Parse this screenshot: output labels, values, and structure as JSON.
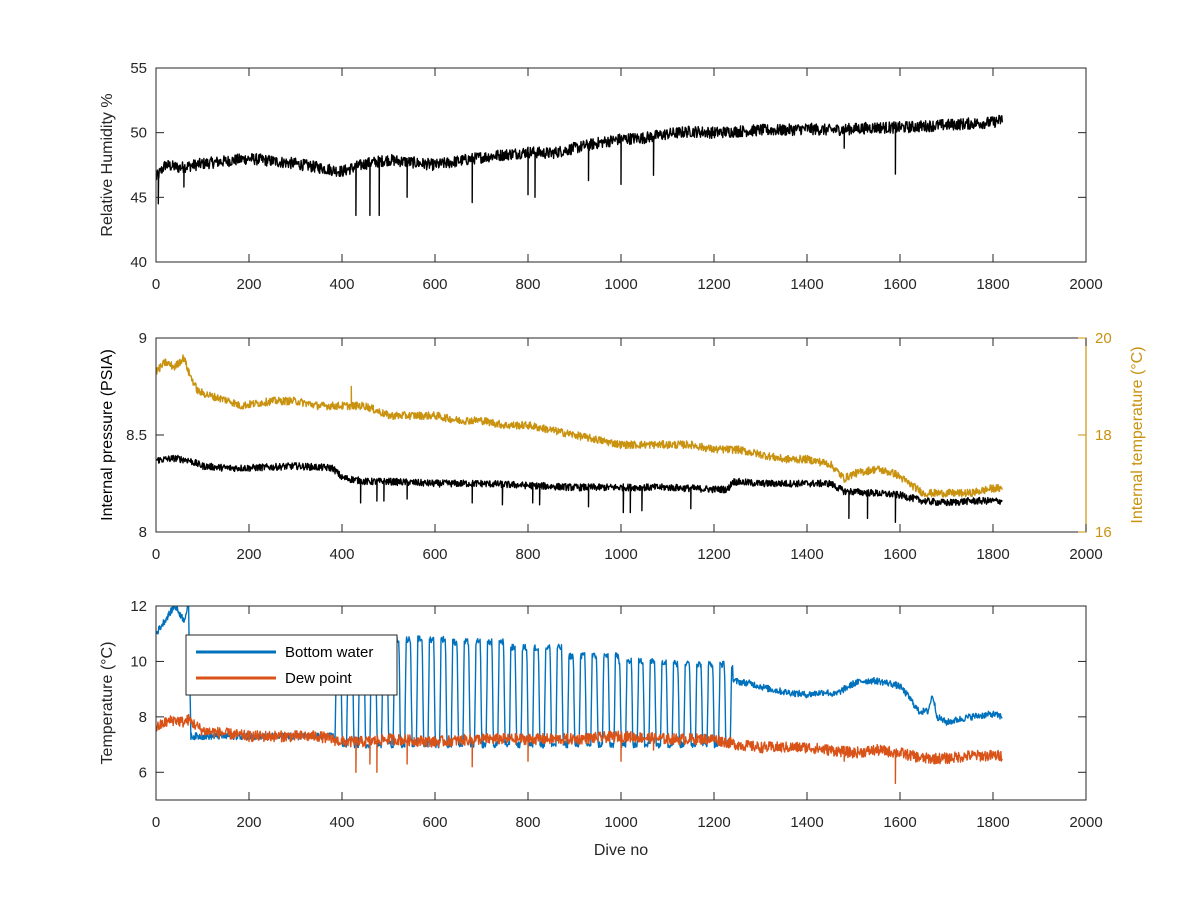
{
  "chart_data": [
    {
      "type": "line",
      "xlabel": "",
      "ylabel": "Relative Humidity %",
      "xlim": [
        0,
        2000
      ],
      "ylim": [
        40,
        55
      ],
      "xticks": [
        "0",
        "200",
        "400",
        "600",
        "800",
        "1000",
        "1200",
        "1400",
        "1600",
        "1800",
        "2000"
      ],
      "yticks": [
        "40",
        "45",
        "50",
        "55"
      ],
      "series": [
        {
          "color": "#000000",
          "x": [
            0,
            20,
            50,
            100,
            150,
            200,
            250,
            300,
            350,
            400,
            450,
            500,
            550,
            600,
            650,
            700,
            750,
            800,
            850,
            900,
            950,
            1000,
            1050,
            1100,
            1150,
            1200,
            1250,
            1300,
            1350,
            1400,
            1450,
            1500,
            1550,
            1600,
            1650,
            1700,
            1750,
            1800,
            1820
          ],
          "y": [
            46.5,
            47.5,
            47.3,
            47.6,
            47.8,
            48.0,
            47.8,
            47.6,
            47.3,
            47.0,
            47.6,
            47.9,
            47.7,
            47.5,
            47.8,
            48.1,
            48.3,
            48.5,
            48.4,
            48.8,
            49.2,
            49.5,
            49.6,
            49.9,
            50.1,
            50.0,
            50.1,
            50.2,
            50.2,
            50.3,
            50.2,
            50.3,
            50.4,
            50.4,
            50.5,
            50.6,
            50.7,
            50.8,
            51.0
          ],
          "noise": 0.45,
          "spikes": [
            [
              5,
              44.5
            ],
            [
              60,
              45.8
            ],
            [
              430,
              43.6
            ],
            [
              460,
              43.6
            ],
            [
              480,
              43.6
            ],
            [
              540,
              45.0
            ],
            [
              680,
              44.6
            ],
            [
              800,
              45.2
            ],
            [
              815,
              45.0
            ],
            [
              930,
              46.3
            ],
            [
              1000,
              46.0
            ],
            [
              1070,
              46.7
            ],
            [
              1480,
              48.8
            ],
            [
              1590,
              46.8
            ]
          ]
        }
      ]
    },
    {
      "type": "line",
      "xlabel": "",
      "ylabel": "Internal pressure (PSIA)",
      "ylabel_right": "Internal temperature (°C)",
      "xlim": [
        0,
        2000
      ],
      "ylim": [
        8,
        9
      ],
      "ylim_right": [
        16,
        20
      ],
      "xticks": [
        "0",
        "200",
        "400",
        "600",
        "800",
        "1000",
        "1200",
        "1400",
        "1600",
        "1800",
        "2000"
      ],
      "yticks": [
        "8",
        "8.5",
        "9"
      ],
      "yticks_right": [
        "16",
        "18",
        "20"
      ],
      "series": [
        {
          "axis": "left",
          "color": "#000000",
          "x": [
            0,
            40,
            70,
            100,
            150,
            180,
            200,
            300,
            380,
            400,
            450,
            500,
            600,
            700,
            800,
            900,
            1000,
            1100,
            1200,
            1230,
            1240,
            1300,
            1400,
            1450,
            1480,
            1550,
            1600,
            1650,
            1700,
            1750,
            1800,
            1820
          ],
          "y": [
            8.37,
            8.38,
            8.37,
            8.34,
            8.33,
            8.33,
            8.33,
            8.34,
            8.33,
            8.28,
            8.26,
            8.26,
            8.25,
            8.25,
            8.24,
            8.23,
            8.23,
            8.23,
            8.22,
            8.22,
            8.26,
            8.25,
            8.25,
            8.25,
            8.21,
            8.2,
            8.19,
            8.16,
            8.15,
            8.16,
            8.16,
            8.16
          ],
          "noise": 0.018,
          "spikes": [
            [
              440,
              8.15
            ],
            [
              475,
              8.16
            ],
            [
              490,
              8.16
            ],
            [
              540,
              8.17
            ],
            [
              680,
              8.15
            ],
            [
              745,
              8.14
            ],
            [
              810,
              8.15
            ],
            [
              825,
              8.14
            ],
            [
              930,
              8.13
            ],
            [
              1005,
              8.1
            ],
            [
              1020,
              8.1
            ],
            [
              1045,
              8.11
            ],
            [
              1150,
              8.12
            ],
            [
              1490,
              8.07
            ],
            [
              1530,
              8.07
            ],
            [
              1590,
              8.05
            ]
          ]
        },
        {
          "axis": "right",
          "color": "#C9920F",
          "x": [
            0,
            20,
            40,
            60,
            70,
            90,
            120,
            160,
            180,
            250,
            300,
            350,
            400,
            450,
            500,
            550,
            600,
            650,
            700,
            750,
            800,
            850,
            900,
            950,
            1000,
            1050,
            1100,
            1150,
            1200,
            1250,
            1300,
            1350,
            1400,
            1450,
            1480,
            1500,
            1550,
            1590,
            1620,
            1650,
            1700,
            1750,
            1800,
            1820
          ],
          "y": [
            19.3,
            19.5,
            19.4,
            19.6,
            19.3,
            18.9,
            18.8,
            18.7,
            18.6,
            18.7,
            18.7,
            18.6,
            18.6,
            18.6,
            18.4,
            18.4,
            18.4,
            18.3,
            18.3,
            18.2,
            18.2,
            18.1,
            18.0,
            17.9,
            17.8,
            17.8,
            17.8,
            17.8,
            17.7,
            17.7,
            17.6,
            17.5,
            17.5,
            17.4,
            17.1,
            17.2,
            17.3,
            17.2,
            17.0,
            16.8,
            16.8,
            16.8,
            16.9,
            16.9
          ],
          "noise": 0.08,
          "spikes": [
            [
              420,
              19.0
            ]
          ]
        }
      ]
    },
    {
      "type": "line",
      "xlabel": "Dive no",
      "ylabel": "Temperature (°C)",
      "xlim": [
        0,
        2000
      ],
      "ylim": [
        5,
        12
      ],
      "xticks": [
        "0",
        "200",
        "400",
        "600",
        "800",
        "1000",
        "1200",
        "1400",
        "1600",
        "1800",
        "2000"
      ],
      "yticks": [
        "6",
        "8",
        "10",
        "12"
      ],
      "legend": "top-left",
      "series": [
        {
          "name": "Bottom water",
          "color": "#0072BD",
          "x": [
            0,
            20,
            40,
            60,
            70,
            75,
            380,
            1240,
            1280,
            1320,
            1350,
            1400,
            1440,
            1460,
            1480,
            1500,
            1520,
            1550,
            1580,
            1600,
            1620,
            1640,
            1660,
            1670,
            1680,
            1700,
            1750,
            1800,
            1820
          ],
          "y": [
            11.0,
            11.5,
            12.0,
            11.5,
            12.0,
            7.3,
            7.3,
            9.3,
            9.2,
            9.0,
            8.9,
            8.8,
            8.9,
            8.8,
            9.0,
            9.2,
            9.3,
            9.3,
            9.2,
            9.1,
            8.7,
            8.2,
            8.2,
            8.8,
            8.0,
            7.8,
            8.0,
            8.1,
            8.0
          ],
          "noise": 0.12,
          "oscillation": {
            "x_start": 385,
            "x_end": 1240,
            "period": 25,
            "low": 7.0,
            "high": [
              10.4,
              10.8,
              10.7,
              10.5,
              10.2,
              10.0,
              9.9
            ]
          }
        },
        {
          "name": "Dew point",
          "color": "#D95319",
          "x": [
            0,
            20,
            40,
            60,
            70,
            100,
            150,
            200,
            250,
            300,
            350,
            400,
            450,
            500,
            600,
            700,
            800,
            900,
            1000,
            1100,
            1200,
            1250,
            1300,
            1400,
            1450,
            1500,
            1550,
            1600,
            1650,
            1700,
            1750,
            1800,
            1820
          ],
          "y": [
            7.6,
            7.8,
            7.9,
            7.8,
            7.9,
            7.5,
            7.4,
            7.3,
            7.3,
            7.3,
            7.3,
            7.1,
            7.1,
            7.2,
            7.1,
            7.2,
            7.2,
            7.2,
            7.3,
            7.2,
            7.2,
            7.0,
            6.9,
            6.9,
            6.8,
            6.7,
            6.8,
            6.7,
            6.5,
            6.5,
            6.6,
            6.6,
            6.6
          ],
          "noise": 0.2,
          "spikes": [
            [
              430,
              6.0
            ],
            [
              460,
              6.3
            ],
            [
              475,
              6.0
            ],
            [
              540,
              6.3
            ],
            [
              680,
              6.2
            ],
            [
              800,
              6.4
            ],
            [
              1000,
              6.4
            ],
            [
              1070,
              6.8
            ],
            [
              1480,
              6.4
            ],
            [
              1590,
              5.6
            ]
          ]
        }
      ]
    }
  ]
}
